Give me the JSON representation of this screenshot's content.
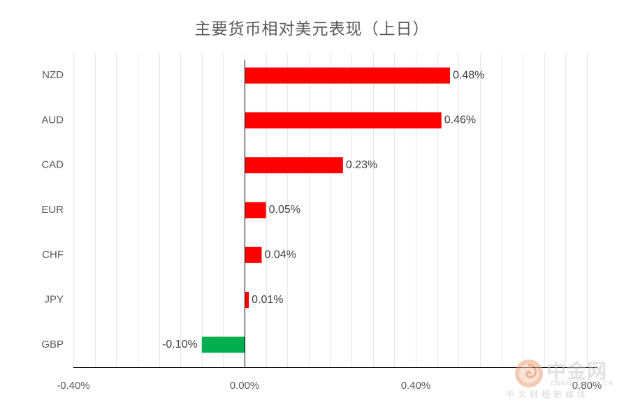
{
  "chart_data": {
    "type": "bar",
    "orientation": "horizontal",
    "title": "主要货币相对美元表现（上日）",
    "categories": [
      "NZD",
      "AUD",
      "CAD",
      "EUR",
      "CHF",
      "JPY",
      "GBP"
    ],
    "values": [
      0.48,
      0.46,
      0.23,
      0.05,
      0.04,
      0.01,
      -0.1
    ],
    "data_labels": [
      "0.48%",
      "0.46%",
      "0.23%",
      "0.05%",
      "0.04%",
      "0.01%",
      "-0.10%"
    ],
    "value_unit": "%",
    "xlim": [
      -0.4,
      0.8
    ],
    "x_ticks": [
      -0.4,
      0.0,
      0.4,
      0.8
    ],
    "x_tick_labels": [
      "-0.40%",
      "0.00%",
      "0.40%",
      "0.80%"
    ],
    "grid": "vertical",
    "legend": "none",
    "colors": {
      "positive": "#ff0000",
      "negative": "#00b050",
      "gridline": "#e6e6e6",
      "axis": "#000000",
      "text": "#595959"
    }
  },
  "watermark": {
    "name": "中金网",
    "domain": "CNGOLD.ORG.CN",
    "subtitle": "中文财经新媒体",
    "logo_icon": "cngold-logo-icon"
  }
}
